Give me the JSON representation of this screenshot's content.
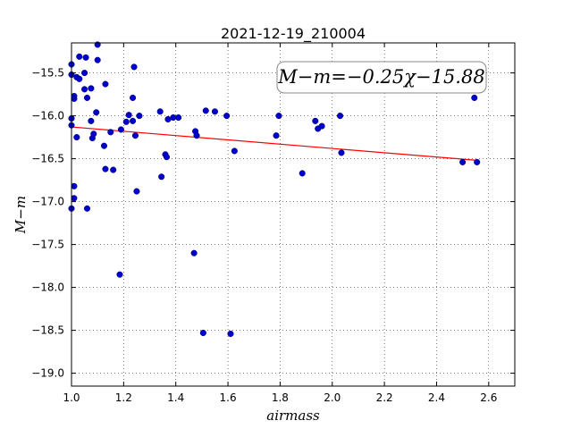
{
  "chart_data": {
    "type": "scatter",
    "title": "2021-12-19_210004",
    "xlabel": "airmass",
    "ylabel": "M−m",
    "xlim": [
      1.0,
      2.7
    ],
    "ylim": [
      -19.15,
      -15.15
    ],
    "xticks": [
      1.0,
      1.2,
      1.4,
      1.6,
      1.8,
      2.0,
      2.2,
      2.4,
      2.6
    ],
    "xtick_labels": [
      "1.0",
      "1.2",
      "1.4",
      "1.6",
      "1.8",
      "2.0",
      "2.2",
      "2.4",
      "2.6"
    ],
    "yticks": [
      -15.5,
      -16.0,
      -16.5,
      -17.0,
      -17.5,
      -18.0,
      -18.5,
      -19.0
    ],
    "ytick_labels": [
      "−15.5",
      "−16.0",
      "−16.5",
      "−17.0",
      "−17.5",
      "−18.0",
      "−18.5",
      "−19.0"
    ],
    "grid": true,
    "annotation": "M−m=−0.25χ−15.88",
    "fit_line": {
      "slope": -0.25,
      "intercept": -15.88,
      "x_range": [
        1.0,
        2.56
      ],
      "color": "#ff0000"
    },
    "marker_color": "#0000cc",
    "points": [
      [
        1.0,
        -15.4
      ],
      [
        1.0,
        -15.52
      ],
      [
        1.0,
        -16.03
      ],
      [
        1.0,
        -16.11
      ],
      [
        1.0,
        -17.08
      ],
      [
        1.01,
        -15.77
      ],
      [
        1.01,
        -15.8
      ],
      [
        1.01,
        -16.82
      ],
      [
        1.01,
        -16.96
      ],
      [
        1.02,
        -15.55
      ],
      [
        1.02,
        -16.25
      ],
      [
        1.03,
        -15.31
      ],
      [
        1.03,
        -15.57
      ],
      [
        1.05,
        -15.5
      ],
      [
        1.05,
        -15.69
      ],
      [
        1.055,
        -15.32
      ],
      [
        1.06,
        -15.79
      ],
      [
        1.06,
        -17.08
      ],
      [
        1.075,
        -15.68
      ],
      [
        1.075,
        -16.06
      ],
      [
        1.08,
        -16.26
      ],
      [
        1.085,
        -16.21
      ],
      [
        1.095,
        -15.96
      ],
      [
        1.1,
        -15.35
      ],
      [
        1.1,
        -15.17
      ],
      [
        1.125,
        -16.35
      ],
      [
        1.13,
        -15.63
      ],
      [
        1.13,
        -16.62
      ],
      [
        1.15,
        -16.19
      ],
      [
        1.16,
        -16.63
      ],
      [
        1.185,
        -17.85
      ],
      [
        1.19,
        -16.16
      ],
      [
        1.21,
        -16.07
      ],
      [
        1.22,
        -15.99
      ],
      [
        1.235,
        -16.06
      ],
      [
        1.235,
        -15.79
      ],
      [
        1.24,
        -15.43
      ],
      [
        1.245,
        -16.23
      ],
      [
        1.25,
        -16.88
      ],
      [
        1.26,
        -16.0
      ],
      [
        1.34,
        -15.95
      ],
      [
        1.345,
        -16.71
      ],
      [
        1.36,
        -16.45
      ],
      [
        1.365,
        -16.48
      ],
      [
        1.37,
        -16.04
      ],
      [
        1.39,
        -16.02
      ],
      [
        1.41,
        -16.02
      ],
      [
        1.47,
        -17.6
      ],
      [
        1.475,
        -16.18
      ],
      [
        1.48,
        -16.23
      ],
      [
        1.505,
        -18.53
      ],
      [
        1.515,
        -15.94
      ],
      [
        1.55,
        -15.95
      ],
      [
        1.595,
        -16.0
      ],
      [
        1.61,
        -18.54
      ],
      [
        1.625,
        -16.41
      ],
      [
        1.785,
        -16.23
      ],
      [
        1.795,
        -16.0
      ],
      [
        1.885,
        -16.67
      ],
      [
        1.935,
        -16.06
      ],
      [
        1.945,
        -16.15
      ],
      [
        1.96,
        -16.12
      ],
      [
        2.03,
        -16.0
      ],
      [
        2.035,
        -16.43
      ],
      [
        2.5,
        -16.54
      ],
      [
        2.545,
        -15.79
      ],
      [
        2.555,
        -16.54
      ]
    ]
  }
}
